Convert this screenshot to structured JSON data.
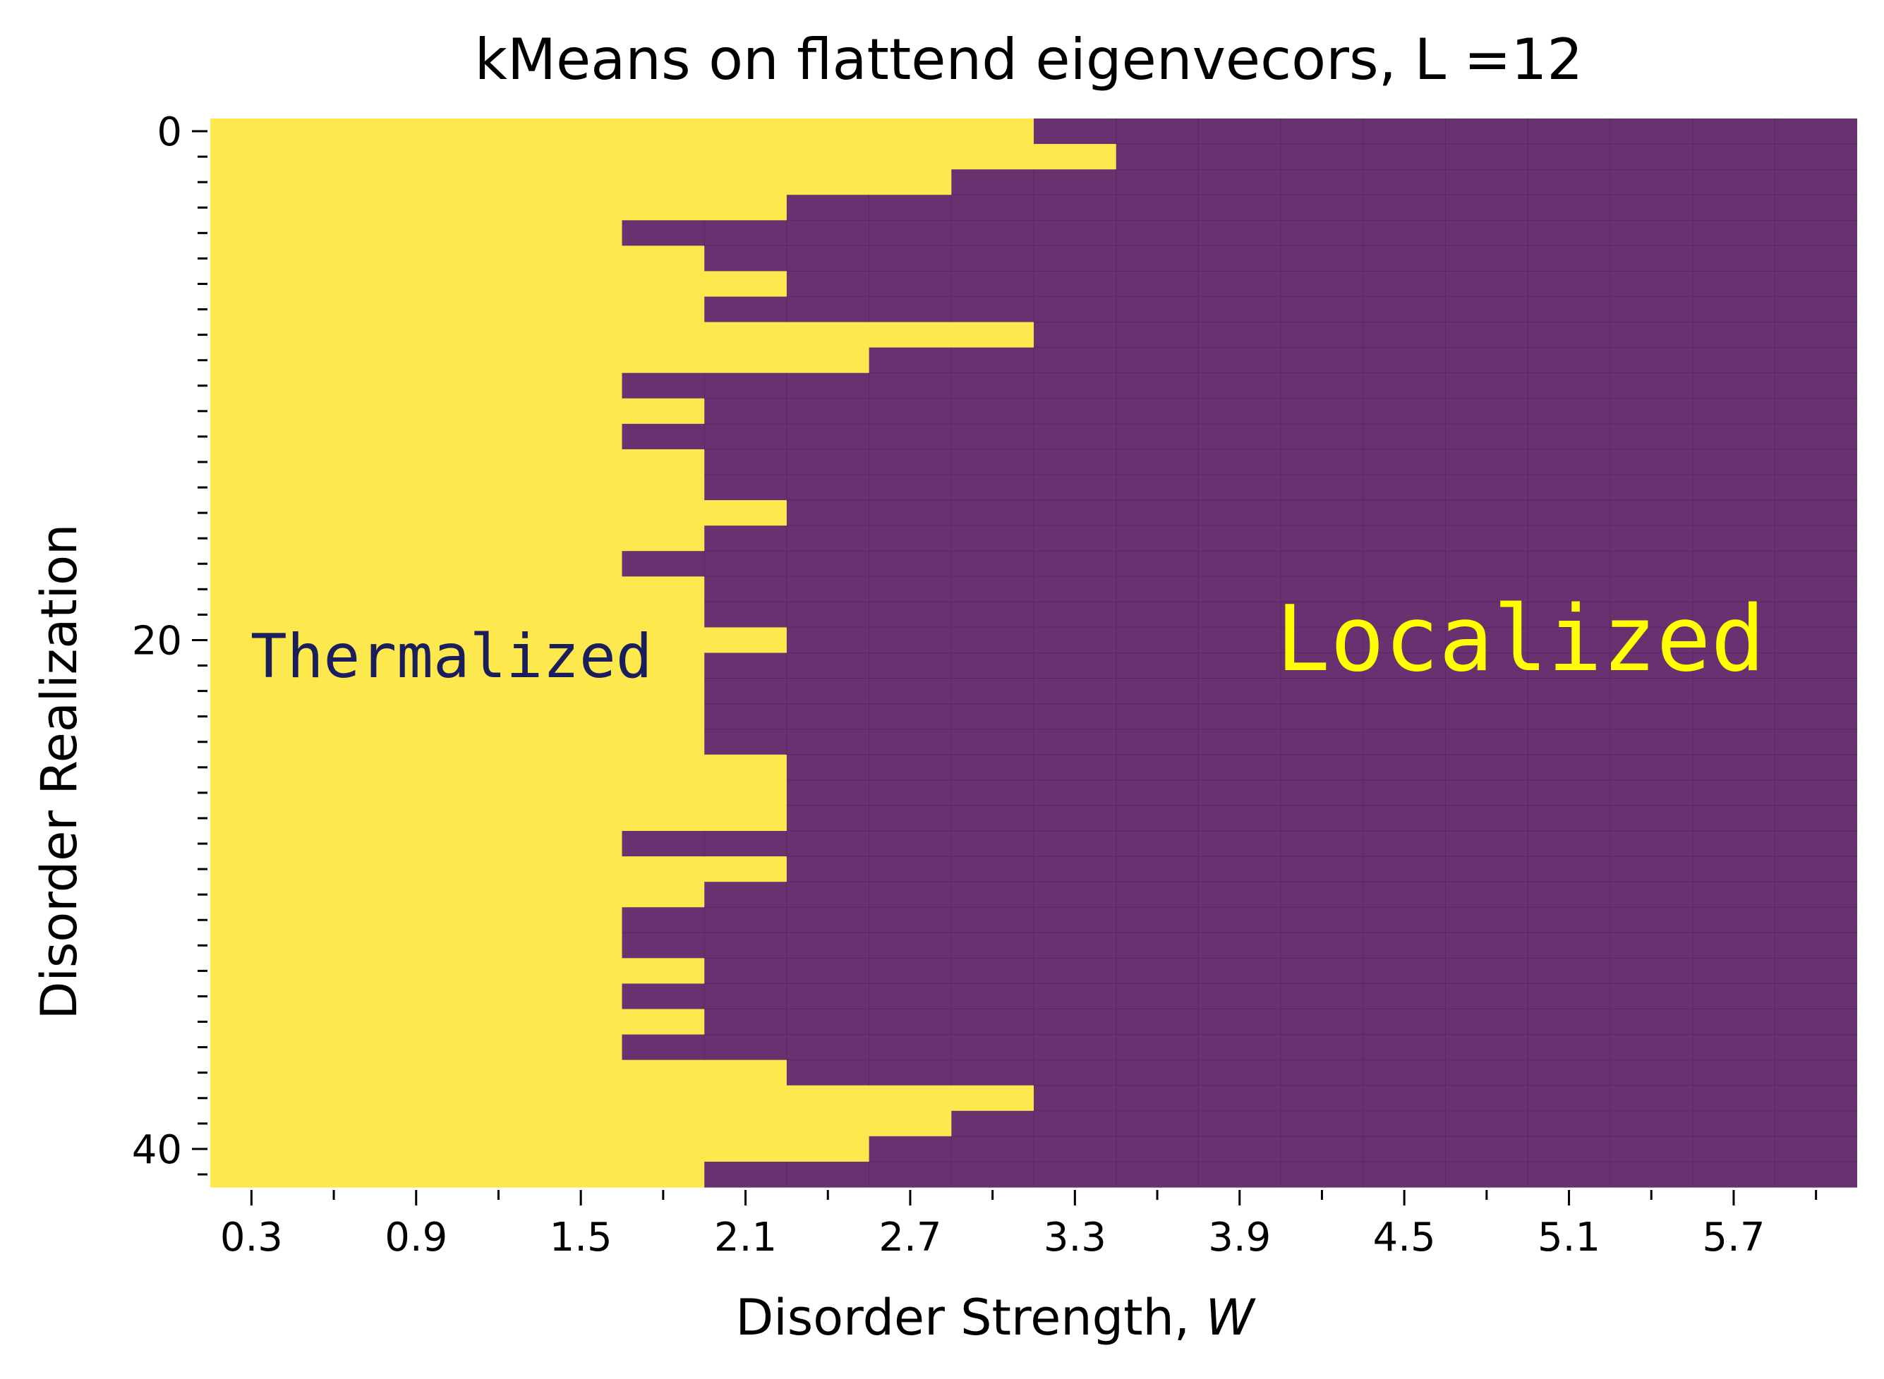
{
  "chart_data": {
    "type": "heatmap",
    "title": "kMeans on flattend eigenvecors, L =12",
    "xlabel": "Disorder Strength, ",
    "xlabel_italic": "W",
    "ylabel": "Disorder Realization",
    "x_values": [
      0.3,
      0.6,
      0.9,
      1.2,
      1.5,
      1.8,
      2.1,
      2.4,
      2.7,
      3.0,
      3.3,
      3.6,
      3.9,
      4.2,
      4.5,
      4.8,
      5.1,
      5.4,
      5.7,
      6.0
    ],
    "x_tick_labels": [
      "0.3",
      "0.9",
      "1.5",
      "2.1",
      "2.7",
      "3.3",
      "3.9",
      "4.5",
      "5.1",
      "5.7"
    ],
    "x_tick_values": [
      0.3,
      0.9,
      1.5,
      2.1,
      2.7,
      3.3,
      3.9,
      4.5,
      5.1,
      5.7
    ],
    "y_tick_labels": [
      "0",
      "20",
      "40"
    ],
    "y_tick_values": [
      0,
      20,
      40
    ],
    "n_realizations": 42,
    "cluster_labels": {
      "thermalized": 0,
      "localized": 1
    },
    "transition_index_per_realization": [
      10,
      11,
      9,
      7,
      5,
      6,
      7,
      6,
      10,
      8,
      5,
      6,
      5,
      6,
      6,
      7,
      6,
      5,
      6,
      6,
      7,
      6,
      6,
      6,
      6,
      7,
      7,
      7,
      5,
      7,
      6,
      5,
      5,
      6,
      5,
      6,
      5,
      7,
      10,
      9,
      8,
      6
    ],
    "annotations": [
      {
        "text": "Thermalized",
        "color": "#1b1e5c"
      },
      {
        "text": "Localized",
        "color": "#ffff00"
      }
    ],
    "colors": {
      "thermalized": "#fde94d",
      "localized": "#67326f",
      "grid": "#4e1f57"
    }
  }
}
